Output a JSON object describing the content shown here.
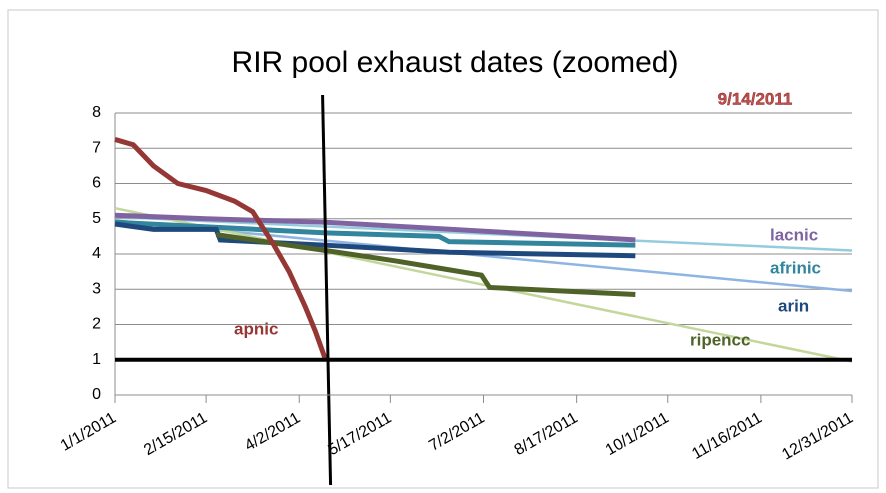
{
  "chart_data": {
    "type": "line",
    "title": "RIR pool exhaust dates (zoomed)",
    "annotation": "9/14/2011",
    "xlim": [
      "2011-01-01",
      "2011-12-31"
    ],
    "xticks": [
      {
        "value": "2011-01-01",
        "label": "1/1/2011"
      },
      {
        "value": "2011-02-15",
        "label": "2/15/2011"
      },
      {
        "value": "2011-04-02",
        "label": "4/2/2011"
      },
      {
        "value": "2011-05-17",
        "label": "5/17/2011"
      },
      {
        "value": "2011-07-02",
        "label": "7/2/2011"
      },
      {
        "value": "2011-08-17",
        "label": "8/17/2011"
      },
      {
        "value": "2011-10-01",
        "label": "10/1/2011"
      },
      {
        "value": "2011-11-16",
        "label": "11/16/2011"
      },
      {
        "value": "2011-12-31",
        "label": "12/31/2011"
      }
    ],
    "ylim": [
      0,
      8
    ],
    "yticks": [
      0,
      1,
      2,
      3,
      4,
      5,
      6,
      7,
      8
    ],
    "grid": true,
    "vline_x": "2011-04-15",
    "hline_y": 1,
    "series": [
      {
        "color": "#93cddd",
        "x": [
          "2011-01-01",
          "2011-12-31"
        ],
        "values": [
          5.05,
          4.1
        ]
      },
      {
        "color": "#8eb4e3",
        "x": [
          "2011-01-01",
          "2011-12-31"
        ],
        "values": [
          4.95,
          2.95
        ]
      },
      {
        "color": "#c3d69b",
        "x": [
          "2011-01-01",
          "2011-12-31"
        ],
        "values": [
          5.3,
          0.95
        ]
      },
      {
        "name": "lacnic",
        "color": "#8064a2",
        "x": [
          "2011-01-01",
          "2011-02-15",
          "2011-04-15",
          "2011-06-01",
          "2011-09-15"
        ],
        "values": [
          5.1,
          5.0,
          4.9,
          4.75,
          4.4
        ]
      },
      {
        "name": "afrinic",
        "color": "#31859c",
        "x": [
          "2011-01-01",
          "2011-04-15",
          "2011-06-10",
          "2011-06-15",
          "2011-09-15"
        ],
        "values": [
          4.9,
          4.6,
          4.5,
          4.35,
          4.25
        ]
      },
      {
        "name": "arin",
        "color": "#1f497d",
        "x": [
          "2011-01-01",
          "2011-01-20",
          "2011-02-20",
          "2011-02-22",
          "2011-04-15",
          "2011-06-15",
          "2011-09-15"
        ],
        "values": [
          4.85,
          4.7,
          4.7,
          4.4,
          4.25,
          4.05,
          3.95
        ]
      },
      {
        "name": "ripencc",
        "color": "#4f6228",
        "x": [
          "2011-02-20",
          "2011-04-15",
          "2011-05-20",
          "2011-06-10",
          "2011-07-01",
          "2011-07-05",
          "2011-08-10",
          "2011-09-15"
        ],
        "values": [
          4.55,
          4.1,
          3.8,
          3.6,
          3.4,
          3.05,
          2.95,
          2.85
        ]
      },
      {
        "name": "apnic",
        "color": "#953735",
        "x": [
          "2011-01-01",
          "2011-01-10",
          "2011-01-20",
          "2011-02-01",
          "2011-02-15",
          "2011-03-01",
          "2011-03-10",
          "2011-03-20",
          "2011-03-28",
          "2011-04-05",
          "2011-04-10",
          "2011-04-15"
        ],
        "values": [
          7.25,
          7.1,
          6.5,
          6.0,
          5.8,
          5.5,
          5.2,
          4.3,
          3.5,
          2.5,
          1.8,
          1.0
        ]
      }
    ]
  }
}
